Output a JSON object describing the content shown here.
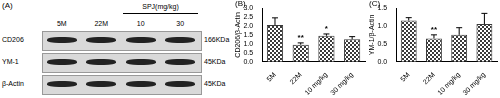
{
  "panel_a": {
    "label": "(A)",
    "columns": [
      "5M",
      "22M",
      "10",
      "30"
    ],
    "group_label": "SPJ(mg/kg)",
    "rows": [
      {
        "name": "CD206",
        "size": "166KDa"
      },
      {
        "name": "YM-1",
        "size": "45KDa"
      },
      {
        "name": "β-Actin",
        "size": "45KDa"
      }
    ]
  },
  "chart_data": [
    {
      "type": "bar",
      "title": "(B)",
      "y_label": "CD206/β-Actin",
      "categories": [
        "5M",
        "22M",
        "10 mg/kg",
        "30 mg/kg"
      ],
      "values": [
        2.05,
        0.95,
        1.45,
        1.25
      ],
      "errors": [
        0.4,
        0.1,
        0.1,
        0.15
      ],
      "significance": [
        null,
        "**",
        "*",
        null
      ],
      "color": "#3a3a3a",
      "ylim": [
        0,
        3
      ],
      "yticks": [
        {
          "value": 0,
          "label": "0.0"
        },
        {
          "value": 0.5,
          "label": "0.5"
        },
        {
          "value": 1,
          "label": "1.0"
        },
        {
          "value": 1.5,
          "label": "1.5"
        },
        {
          "value": 2,
          "label": "2.0"
        },
        {
          "value": 2.5,
          "label": "2.5"
        },
        {
          "value": 3,
          "label": "3.0"
        }
      ],
      "grid": false
    },
    {
      "type": "bar",
      "title": "(C)",
      "y_label": "YM-1/β-Actin",
      "categories": [
        "5M",
        "22M",
        "10 mg/kg",
        "30 mg/kg"
      ],
      "values": [
        1.15,
        0.65,
        0.75,
        1.05
      ],
      "errors": [
        0.08,
        0.1,
        0.2,
        0.3
      ],
      "significance": [
        null,
        "**",
        null,
        null
      ],
      "color": "#3a3a3a",
      "ylim": [
        0,
        1.5
      ],
      "yticks": [
        {
          "value": 0,
          "label": "0.0"
        },
        {
          "value": 0.5,
          "label": "0.5"
        },
        {
          "value": 1,
          "label": "1.0"
        },
        {
          "value": 1.5,
          "label": "1.5"
        }
      ],
      "grid": false
    }
  ]
}
